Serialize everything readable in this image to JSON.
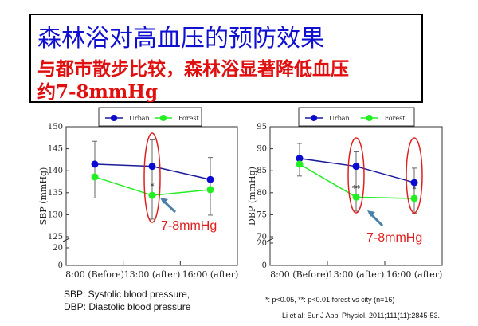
{
  "header": {
    "title": "森林浴对高血压的预防效果",
    "subtitle_line1": "与都市散步比较，森林浴显著降低血压",
    "subtitle_line2": "约7-8mmHg"
  },
  "colors": {
    "urban": "#0a0ad0",
    "urban_line": "#1a1a9a",
    "forest": "#22ee22",
    "annotation": "#e02020",
    "arrow": "#4a7fa8"
  },
  "chart_data": [
    {
      "type": "line",
      "ylabel": "SBP (mmHg)",
      "categories": [
        "8:00 (Before)",
        "13:00 (after)",
        "16:00 (after)"
      ],
      "yticks": [
        "150",
        "145",
        "140",
        "135",
        "130",
        "125",
        "20",
        "0"
      ],
      "ylim": [
        125,
        150
      ],
      "axis_break": true,
      "legend": [
        "Urban",
        "Forest"
      ],
      "series": [
        {
          "name": "Urban",
          "values": [
            141.5,
            141.0,
            138.0
          ],
          "err_upper": [
            5.2,
            6.0,
            5.0
          ]
        },
        {
          "name": "Forest",
          "values": [
            138.6,
            134.4,
            135.7
          ],
          "err_lower": [
            4.8,
            5.4,
            5.8
          ]
        }
      ],
      "significance": [
        "",
        "*",
        ""
      ],
      "highlight": [
        1
      ],
      "annotation": "7-8mmHg"
    },
    {
      "type": "line",
      "ylabel": "DBP (mmHg)",
      "categories": [
        "8:00 (Before)",
        "13:00 (after)",
        "16:00 (after)"
      ],
      "yticks": [
        "95",
        "90",
        "85",
        "80",
        "75",
        "70",
        "20",
        "0"
      ],
      "ylim": [
        70,
        95
      ],
      "axis_break": true,
      "legend": [
        "Urban",
        "Forest"
      ],
      "series": [
        {
          "name": "Urban",
          "values": [
            87.8,
            86.0,
            82.3
          ],
          "err_upper": [
            3.4,
            3.3,
            3.3
          ]
        },
        {
          "name": "Forest",
          "values": [
            86.5,
            79.0,
            78.7
          ],
          "err_lower": [
            2.7,
            3.2,
            3.4
          ]
        }
      ],
      "significance": [
        "",
        "**",
        "*"
      ],
      "highlight": [
        1,
        2
      ],
      "annotation": "7-8mmHg"
    }
  ],
  "notes": {
    "sbp": "SBP: Systolic blood pressure,",
    "dbp": "DBP: Diastolic blood pressure",
    "sig": "*: p<0.05, **: p<0.01 forest vs city (n=16)",
    "ref": "Li et al: Eur J Appl Physiol. 2011;111(11):2845-53."
  }
}
